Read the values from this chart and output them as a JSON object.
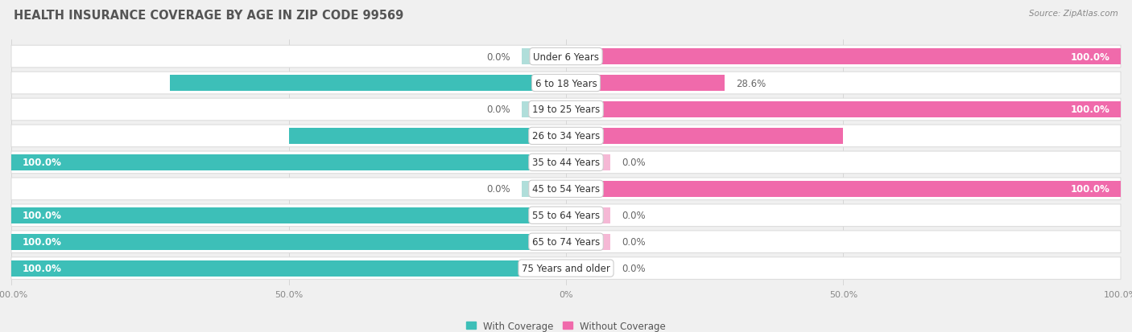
{
  "title": "HEALTH INSURANCE COVERAGE BY AGE IN ZIP CODE 99569",
  "source": "Source: ZipAtlas.com",
  "categories": [
    "Under 6 Years",
    "6 to 18 Years",
    "19 to 25 Years",
    "26 to 34 Years",
    "35 to 44 Years",
    "45 to 54 Years",
    "55 to 64 Years",
    "65 to 74 Years",
    "75 Years and older"
  ],
  "with_coverage": [
    0.0,
    71.4,
    0.0,
    50.0,
    100.0,
    0.0,
    100.0,
    100.0,
    100.0
  ],
  "without_coverage": [
    100.0,
    28.6,
    100.0,
    50.0,
    0.0,
    100.0,
    0.0,
    0.0,
    0.0
  ],
  "color_with": "#3dbfb8",
  "color_without": "#f06aab",
  "color_with_light": "#b0deda",
  "color_without_light": "#f5b8d5",
  "bg_color": "#f0f0f0",
  "row_bg_color": "#f8f8f8",
  "bar_bg_color": "#ffffff",
  "title_fontsize": 10.5,
  "label_fontsize": 8.5,
  "tick_fontsize": 8,
  "legend_fontsize": 8.5,
  "xlim_left": -100,
  "xlim_right": 100,
  "bar_height": 0.6,
  "stub_size": 8
}
